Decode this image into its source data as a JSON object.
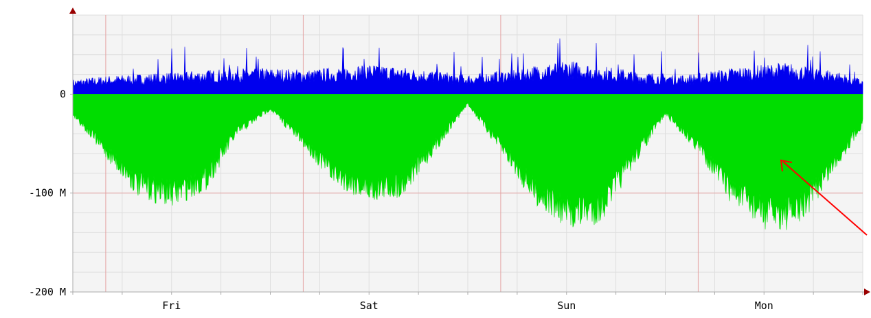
{
  "colors": {
    "background": "#ffffff",
    "plot_background": "#f4f4f4",
    "major_grid": "#e4a0a0",
    "minor_grid": "#dedede",
    "axis": "#aaaaaa",
    "axis_arrow": "#990000",
    "inbound_area": "#00dd00",
    "outbound_area": "#0000ee",
    "annotation_arrow": "#ff0000"
  },
  "chart_data": {
    "type": "area",
    "title": "",
    "xlabel": "",
    "ylabel": "",
    "y_tick_labels": [
      "0",
      "-100 M",
      "-200 M"
    ],
    "y_tick_values": [
      0,
      -100000000,
      -200000000
    ],
    "ylim": [
      -200000000,
      80000000
    ],
    "x_tick_labels": [
      "Fri",
      "Sat",
      "Sun",
      "Mon"
    ],
    "x_tick_positions_days": [
      0.5,
      1.5,
      2.5,
      3.5
    ],
    "xlim_days": [
      0,
      4.0
    ],
    "grid": true,
    "legend": "none",
    "series": [
      {
        "color": "#0000ee",
        "x_days": [
          0.0,
          0.17,
          0.5,
          0.9,
          1.2,
          1.5,
          1.8,
          2.0,
          2.2,
          2.5,
          2.65,
          2.9,
          3.1,
          3.35,
          3.6,
          3.85,
          4.0
        ],
        "values": [
          12000000,
          15000000,
          18000000,
          22000000,
          20000000,
          25000000,
          20000000,
          16000000,
          20000000,
          28000000,
          24000000,
          18000000,
          16000000,
          22000000,
          26000000,
          20000000,
          12000000
        ]
      },
      {
        "color": "#00dd00",
        "x_days": [
          0.0,
          0.17,
          0.33,
          0.5,
          0.67,
          0.83,
          1.0,
          1.17,
          1.33,
          1.5,
          1.67,
          1.83,
          2.0,
          2.17,
          2.33,
          2.5,
          2.67,
          2.83,
          3.0,
          3.17,
          3.33,
          3.5,
          3.67,
          3.83,
          4.0
        ],
        "values": [
          -20000000,
          -60000000,
          -95000000,
          -105000000,
          -90000000,
          -40000000,
          -15000000,
          -50000000,
          -85000000,
          -100000000,
          -95000000,
          -55000000,
          -10000000,
          -55000000,
          -100000000,
          -125000000,
          -120000000,
          -70000000,
          -20000000,
          -55000000,
          -100000000,
          -125000000,
          -125000000,
          -80000000,
          -30000000
        ]
      }
    ]
  }
}
